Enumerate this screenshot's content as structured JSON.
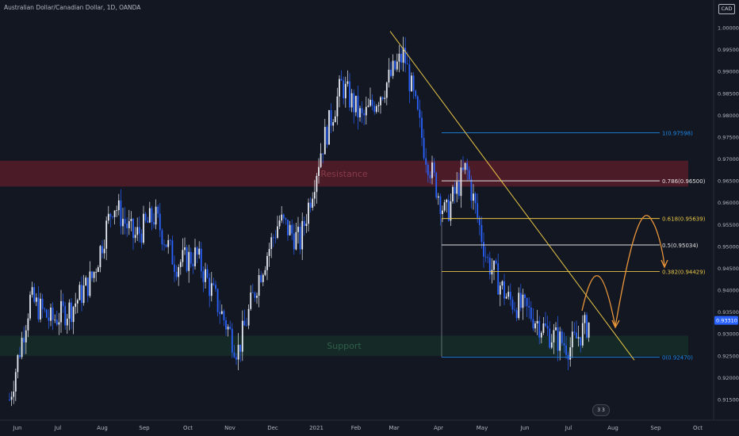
{
  "header": {
    "title": "Australian Dollar/Canadian Dollar, 1D, OANDA",
    "currency": "CAD"
  },
  "chart_data": {
    "type": "candlestick",
    "symbol": "AUDCAD",
    "timeframe": "1D",
    "source": "OANDA",
    "x_labels": [
      "Jun",
      "Jul",
      "Aug",
      "Sep",
      "Oct",
      "Nov",
      "Dec",
      "2021",
      "Feb",
      "Mar",
      "Apr",
      "May",
      "Jun",
      "Jul",
      "Aug",
      "Sep",
      "Oct"
    ],
    "y_ticks": [
      "1.00000",
      "0.99500",
      "0.99000",
      "0.98500",
      "0.98000",
      "0.97500",
      "0.97000",
      "0.96500",
      "0.96000",
      "0.95500",
      "0.95000",
      "0.94500",
      "0.94000",
      "0.93500",
      "0.93000",
      "0.92500",
      "0.92000",
      "0.91500"
    ],
    "ylim": [
      0.9115,
      1.0018
    ],
    "current_price": "0.93310",
    "price_path": [
      [
        "Jun",
        0.915
      ],
      [
        "Jun",
        0.938
      ],
      [
        "Jun",
        0.933
      ],
      [
        "Jul",
        0.936
      ],
      [
        "Jul",
        0.943
      ],
      [
        "Aug",
        0.96
      ],
      [
        "Aug",
        0.952
      ],
      [
        "Sep",
        0.957
      ],
      [
        "Sep",
        0.946
      ],
      [
        "Oct",
        0.948
      ],
      [
        "Oct",
        0.937
      ],
      [
        "Nov",
        0.926
      ],
      [
        "Nov",
        0.943
      ],
      [
        "Dec",
        0.956
      ],
      [
        "Dec",
        0.951
      ],
      [
        "2021",
        0.972
      ],
      [
        "2021",
        0.987
      ],
      [
        "Feb",
        0.979
      ],
      [
        "Feb",
        0.986
      ],
      [
        "Mar",
        0.994
      ],
      [
        "Mar",
        0.972
      ],
      [
        "Apr",
        0.957
      ],
      [
        "Apr",
        0.968
      ],
      [
        "May",
        0.947
      ],
      [
        "May",
        0.938
      ],
      [
        "Jun",
        0.935
      ],
      [
        "Jun",
        0.93
      ],
      [
        "Jul",
        0.927
      ],
      [
        "Jul",
        0.9331
      ]
    ],
    "zones": [
      {
        "label": "Resistance",
        "top": 0.9696,
        "bottom": 0.9637,
        "color": "#7a1f2b"
      },
      {
        "label": "Support",
        "top": 0.9296,
        "bottom": 0.925,
        "color": "#173a2c"
      }
    ],
    "fibonacci": [
      {
        "label": "1(0.97598)",
        "value": 0.97598,
        "color": "#1e88e5"
      },
      {
        "label": "0.786(0.96500)",
        "value": 0.965,
        "color": "#e0e0e0"
      },
      {
        "label": "0.618(0.95639)",
        "value": 0.95639,
        "color": "#e8c547"
      },
      {
        "label": "0.5(0.95034)",
        "value": 0.95034,
        "color": "#e0e0e0"
      },
      {
        "label": "0.382(0.94429)",
        "value": 0.94429,
        "color": "#e8c547"
      },
      {
        "label": "0(0.92470)",
        "value": 0.9247,
        "color": "#1e88e5"
      }
    ],
    "trendline": {
      "from": [
        "Mar",
        0.9992
      ],
      "to": [
        "Aug",
        0.926
      ],
      "color": "#e8c547"
    },
    "projection_color": "#e8953a"
  },
  "footer": {
    "logo_text": "3 3"
  }
}
